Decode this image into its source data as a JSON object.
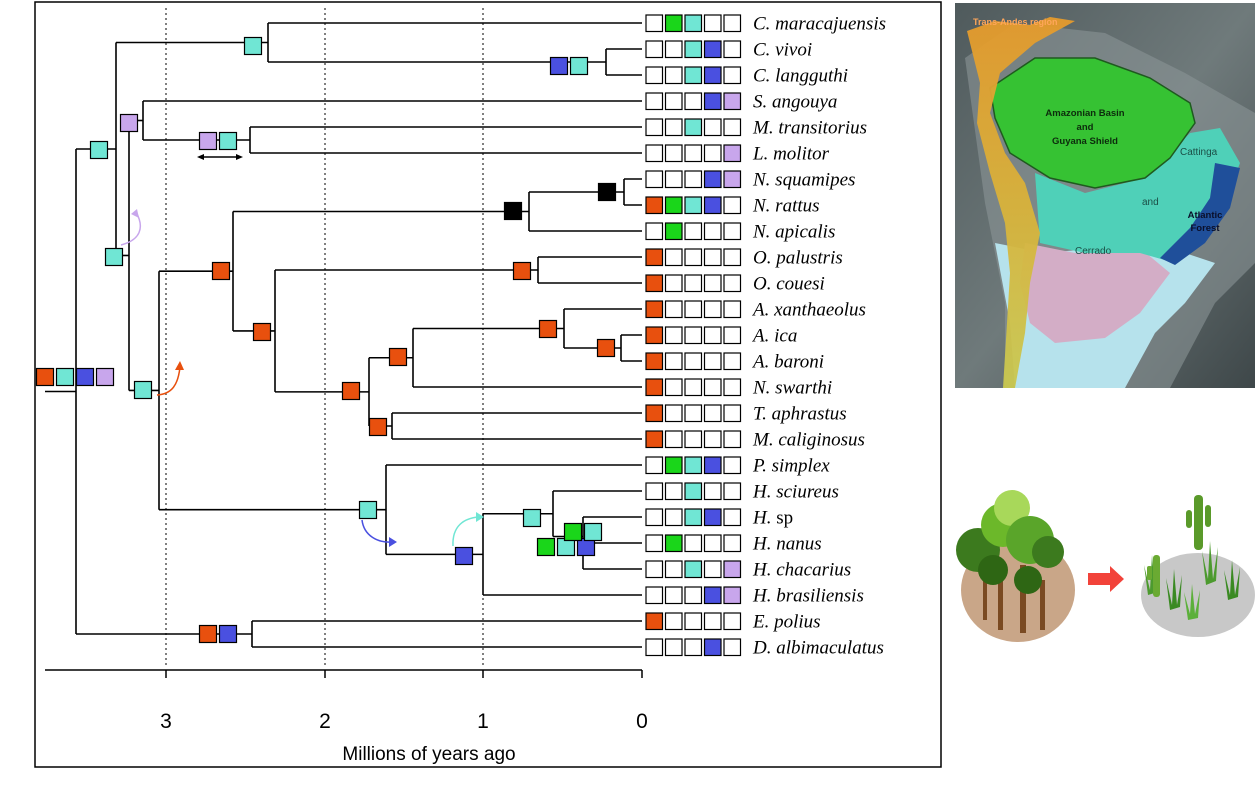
{
  "colors": {
    "trans_andes": "#e8500e",
    "amazonian_guyana": "#1ad61a",
    "cerrado_caatinga": "#70e6d4",
    "atlantic_forest": "#4a50e0",
    "chaco": "#c8a6ec",
    "black_state": "#000000",
    "empty": "#ffffff"
  },
  "tree": {
    "axis_title": "Millions of years ago",
    "ticks": [
      "3",
      "2",
      "1",
      "0"
    ],
    "taxa": [
      {
        "id": "c_maracajuensis",
        "name": "C. maracajuensis",
        "states": [
          0,
          1,
          1,
          0,
          0
        ]
      },
      {
        "id": "c_vivoi",
        "name": "C. vivoi",
        "states": [
          0,
          0,
          1,
          1,
          0
        ]
      },
      {
        "id": "c_langguthi",
        "name": "C. langguthi",
        "states": [
          0,
          0,
          1,
          1,
          0
        ]
      },
      {
        "id": "s_angouya",
        "name": "S. angouya",
        "states": [
          0,
          0,
          0,
          1,
          1
        ]
      },
      {
        "id": "m_transitorius",
        "name": "M. transitorius",
        "states": [
          0,
          0,
          1,
          0,
          0
        ]
      },
      {
        "id": "l_molitor",
        "name": "L. molitor",
        "states": [
          0,
          0,
          0,
          0,
          1
        ]
      },
      {
        "id": "n_squamipes",
        "name": "N. squamipes",
        "states": [
          0,
          0,
          0,
          1,
          1
        ]
      },
      {
        "id": "n_rattus",
        "name": "N. rattus",
        "states": [
          1,
          1,
          1,
          1,
          0
        ]
      },
      {
        "id": "n_apicalis",
        "name": "N. apicalis",
        "states": [
          0,
          1,
          0,
          0,
          0
        ]
      },
      {
        "id": "o_palustris",
        "name": "O. palustris",
        "states": [
          1,
          0,
          0,
          0,
          0
        ]
      },
      {
        "id": "o_couesi",
        "name": "O. couesi",
        "states": [
          1,
          0,
          0,
          0,
          0
        ]
      },
      {
        "id": "a_xanthaeolus",
        "name": "A. xanthaeolus",
        "states": [
          1,
          0,
          0,
          0,
          0
        ]
      },
      {
        "id": "a_ica",
        "name": "A. ica",
        "states": [
          1,
          0,
          0,
          0,
          0
        ]
      },
      {
        "id": "a_baroni",
        "name": "A. baroni",
        "states": [
          1,
          0,
          0,
          0,
          0
        ]
      },
      {
        "id": "n_swarthi",
        "name": "N. swarthi",
        "states": [
          1,
          0,
          0,
          0,
          0
        ]
      },
      {
        "id": "t_aphrastus",
        "name": "T. aphrastus",
        "states": [
          1,
          0,
          0,
          0,
          0
        ]
      },
      {
        "id": "m_caliginosus",
        "name": "M. caliginosus",
        "states": [
          1,
          0,
          0,
          0,
          0
        ]
      },
      {
        "id": "p_simplex",
        "name": "P. simplex",
        "states": [
          0,
          1,
          1,
          1,
          0
        ]
      },
      {
        "id": "h_sciureus",
        "name": "H. sciureus",
        "states": [
          0,
          0,
          1,
          0,
          0
        ]
      },
      {
        "id": "h_sp",
        "name_italic": "H.",
        "name_roman": "sp",
        "states": [
          0,
          0,
          1,
          1,
          0
        ]
      },
      {
        "id": "h_nanus",
        "name": "H. nanus",
        "states": [
          0,
          1,
          0,
          0,
          0
        ]
      },
      {
        "id": "h_chacarius",
        "name": "H. chacarius",
        "states": [
          0,
          0,
          1,
          0,
          1
        ]
      },
      {
        "id": "h_brasiliensis",
        "name": "H. brasiliensis",
        "states": [
          0,
          0,
          0,
          1,
          1
        ]
      },
      {
        "id": "e_polius",
        "name": "E. polius",
        "states": [
          1,
          0,
          0,
          0,
          0
        ]
      },
      {
        "id": "d_albimaculatus",
        "name": "D. albimaculatus",
        "states": [
          0,
          0,
          0,
          1,
          0
        ]
      }
    ]
  },
  "map": {
    "label_trans_andes": "Trans-Andes region",
    "label_amazon_1": "Amazonian Basin",
    "label_amazon_2": "and",
    "label_amazon_3": "Guyana Shield",
    "label_caatinga": "Cattinga",
    "label_and": "and",
    "label_atlantic_1": "Atlantic",
    "label_atlantic_2": "Forest",
    "label_cerrado": "Cerrado"
  },
  "transition_illustration": {
    "from": "forest",
    "to": "open vegetation with cacti"
  }
}
